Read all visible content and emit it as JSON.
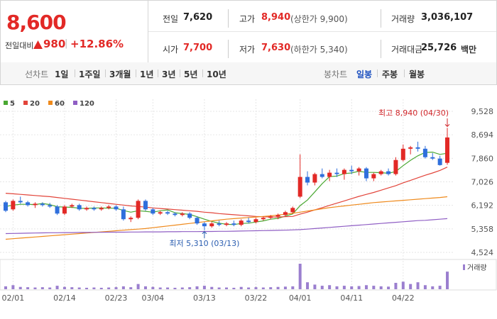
{
  "quote": {
    "price": "8,600",
    "change_label": "전일대비",
    "change": "980",
    "change_pct": "+12.86%",
    "rows": [
      [
        {
          "label": "전일",
          "value": "7,620"
        },
        {
          "label": "고가",
          "value": "8,940",
          "extra": "(상한가 9,900)"
        },
        {
          "label": "거래량",
          "value": "3,036,107"
        }
      ],
      [
        {
          "label": "시가",
          "value": "7,700"
        },
        {
          "label": "저가",
          "value": "7,630",
          "extra": "(하한가 5,340)"
        },
        {
          "label": "거래대금",
          "value": "25,726",
          "unit": "백만"
        }
      ]
    ]
  },
  "tabs": {
    "line_label": "선차트",
    "line_periods": [
      "1일",
      "1주일",
      "3개월",
      "1년",
      "3년",
      "5년",
      "10년"
    ],
    "candle_label": "봉차트",
    "candle_periods": [
      "일봉",
      "주봉",
      "월봉"
    ],
    "active": "일봉"
  },
  "chart_data": {
    "type": "candlestick",
    "categories": [
      null,
      "02/01",
      null,
      null,
      null,
      null,
      null,
      null,
      "02/14",
      null,
      null,
      null,
      null,
      null,
      null,
      "02/23",
      null,
      null,
      null,
      null,
      "03/04",
      null,
      null,
      null,
      null,
      null,
      null,
      "03/13",
      null,
      null,
      null,
      null,
      null,
      null,
      "03/22",
      null,
      null,
      null,
      null,
      null,
      "04/01",
      null,
      null,
      null,
      null,
      null,
      null,
      "04/11",
      null,
      null,
      null,
      null,
      null,
      null,
      "04/22",
      null,
      null,
      null,
      null,
      null,
      null
    ],
    "open": [
      6300,
      6050,
      6350,
      6300,
      6200,
      6250,
      6200,
      6150,
      5900,
      6150,
      6200,
      6050,
      6100,
      6050,
      6100,
      6150,
      6050,
      5700,
      5750,
      6350,
      6050,
      5900,
      5950,
      5900,
      5850,
      5900,
      5750,
      5550,
      5450,
      5550,
      5500,
      5550,
      5500,
      5650,
      5600,
      5700,
      5750,
      5800,
      5850,
      5950,
      6500,
      7200,
      7000,
      7300,
      7200,
      7350,
      7300,
      7450,
      7400,
      7500,
      7150,
      7300,
      7400,
      7300,
      7800,
      8200,
      8250,
      8200,
      7900,
      7850,
      7700
    ],
    "high": [
      6350,
      6400,
      6500,
      6350,
      6300,
      6300,
      6280,
      6200,
      6200,
      6250,
      6250,
      6150,
      6150,
      6150,
      6200,
      6200,
      6150,
      5800,
      6400,
      6400,
      6100,
      6000,
      6000,
      5950,
      5950,
      5950,
      5800,
      5600,
      5600,
      5650,
      5600,
      5650,
      5700,
      5750,
      5750,
      5800,
      5850,
      5900,
      6000,
      6150,
      8000,
      7400,
      7350,
      7500,
      7450,
      7500,
      7500,
      7600,
      7550,
      7550,
      7350,
      7450,
      7500,
      7900,
      8350,
      8300,
      8450,
      8300,
      8050,
      7950,
      8940
    ],
    "low": [
      5950,
      6000,
      6250,
      6150,
      6100,
      6150,
      6100,
      5850,
      5850,
      6100,
      6000,
      6000,
      6000,
      6000,
      6050,
      6000,
      5650,
      5600,
      5700,
      6000,
      5850,
      5850,
      5850,
      5800,
      5800,
      5700,
      5500,
      5310,
      5400,
      5450,
      5450,
      5450,
      5450,
      5550,
      5550,
      5650,
      5700,
      5700,
      5800,
      5900,
      6450,
      6900,
      6900,
      7150,
      7050,
      7200,
      7100,
      7300,
      7250,
      7050,
      7050,
      7250,
      7250,
      7250,
      7750,
      8000,
      8100,
      7850,
      7800,
      7600,
      7630
    ],
    "close": [
      6000,
      6350,
      6300,
      6200,
      6250,
      6200,
      6150,
      5900,
      6150,
      6200,
      6050,
      6100,
      6050,
      6100,
      6150,
      6050,
      5700,
      5750,
      6350,
      6050,
      5900,
      5950,
      5900,
      5850,
      5900,
      5750,
      5550,
      5450,
      5550,
      5500,
      5550,
      5500,
      5650,
      5600,
      5700,
      5750,
      5800,
      5850,
      5950,
      6100,
      7200,
      7000,
      7300,
      7200,
      7350,
      7300,
      7450,
      7400,
      7500,
      7150,
      7300,
      7400,
      7300,
      7800,
      8200,
      8250,
      8200,
      7900,
      7850,
      7620,
      8600
    ],
    "up_color": "#e22926",
    "down_color": "#2f6fdc",
    "series": [
      {
        "name": "5",
        "color": "#4aa832",
        "values": [
          6150,
          6200,
          6230,
          6230,
          6220,
          6260,
          6220,
          6140,
          6130,
          6120,
          6090,
          6080,
          6100,
          6100,
          6090,
          6090,
          6010,
          5950,
          6000,
          5980,
          5950,
          6000,
          6030,
          5930,
          5900,
          5870,
          5790,
          5700,
          5620,
          5560,
          5520,
          5510,
          5550,
          5560,
          5600,
          5640,
          5700,
          5730,
          5810,
          5890,
          6180,
          6380,
          6670,
          6960,
          7210,
          7230,
          7320,
          7340,
          7400,
          7360,
          7360,
          7350,
          7330,
          7390,
          7600,
          7790,
          7950,
          8070,
          8080,
          8000,
          8040
        ]
      },
      {
        "name": "20",
        "color": "#e2443a",
        "values": [
          6620,
          6600,
          6580,
          6560,
          6540,
          6520,
          6500,
          6470,
          6440,
          6410,
          6380,
          6350,
          6320,
          6290,
          6260,
          6230,
          6200,
          6170,
          6150,
          6130,
          6100,
          6080,
          6060,
          6040,
          6020,
          6000,
          5980,
          5950,
          5930,
          5900,
          5880,
          5860,
          5840,
          5820,
          5800,
          5790,
          5780,
          5780,
          5790,
          5800,
          5880,
          5950,
          6030,
          6110,
          6190,
          6270,
          6350,
          6430,
          6510,
          6580,
          6650,
          6730,
          6810,
          6890,
          6990,
          7080,
          7170,
          7260,
          7340,
          7430,
          7549
        ]
      },
      {
        "name": "60",
        "color": "#ef8a1c",
        "values": [
          4990,
          5010,
          5030,
          5050,
          5070,
          5090,
          5110,
          5130,
          5150,
          5170,
          5190,
          5210,
          5230,
          5250,
          5270,
          5290,
          5310,
          5330,
          5350,
          5370,
          5400,
          5430,
          5460,
          5490,
          5520,
          5550,
          5580,
          5610,
          5640,
          5670,
          5700,
          5720,
          5740,
          5760,
          5780,
          5800,
          5820,
          5850,
          5880,
          5910,
          5950,
          5990,
          6030,
          6070,
          6110,
          6140,
          6170,
          6200,
          6230,
          6260,
          6290,
          6310,
          6330,
          6350,
          6370,
          6390,
          6410,
          6430,
          6450,
          6470,
          6497
        ]
      },
      {
        "name": "120",
        "color": "#8f5ec4",
        "values": [
          5190,
          5195,
          5200,
          5205,
          5210,
          5215,
          5220,
          5220,
          5225,
          5225,
          5230,
          5230,
          5235,
          5235,
          5240,
          5240,
          5240,
          5245,
          5245,
          5250,
          5250,
          5250,
          5255,
          5255,
          5260,
          5260,
          5260,
          5265,
          5265,
          5270,
          5270,
          5275,
          5280,
          5285,
          5290,
          5295,
          5300,
          5305,
          5310,
          5320,
          5330,
          5350,
          5370,
          5390,
          5410,
          5430,
          5450,
          5470,
          5490,
          5510,
          5530,
          5550,
          5570,
          5590,
          5610,
          5630,
          5650,
          5660,
          5680,
          5700,
          5720
        ]
      }
    ],
    "volume": {
      "name": "거래량",
      "color": "#9b7fcf",
      "values": [
        500000,
        700000,
        400000,
        350000,
        300000,
        350000,
        300000,
        600000,
        400000,
        350000,
        300000,
        250000,
        300000,
        250000,
        300000,
        350000,
        500000,
        350000,
        900000,
        500000,
        400000,
        300000,
        300000,
        250000,
        300000,
        350000,
        500000,
        600000,
        400000,
        300000,
        300000,
        250000,
        400000,
        300000,
        350000,
        300000,
        350000,
        400000,
        450000,
        500000,
        4400000,
        1200000,
        800000,
        600000,
        700000,
        500000,
        600000,
        500000,
        550000,
        700000,
        600000,
        500000,
        450000,
        1100000,
        1300000,
        900000,
        1200000,
        700000,
        500000,
        600000,
        3036107
      ]
    },
    "ylim": [
      4524,
      9528
    ],
    "yticks": [
      {
        "value": 4524,
        "label": "4,524"
      },
      {
        "value": 5358,
        "label": "5,358"
      },
      {
        "value": 6192,
        "label": "6,192"
      },
      {
        "value": 7026,
        "label": "7,026"
      },
      {
        "value": 7860,
        "label": "7,860"
      },
      {
        "value": 8694,
        "label": "8,694"
      },
      {
        "value": 9528,
        "label": "9,528"
      }
    ],
    "grid": true,
    "annotations": {
      "high": "최고 8,940 (04/30)",
      "low": "최저 5,310 (03/13)"
    }
  }
}
